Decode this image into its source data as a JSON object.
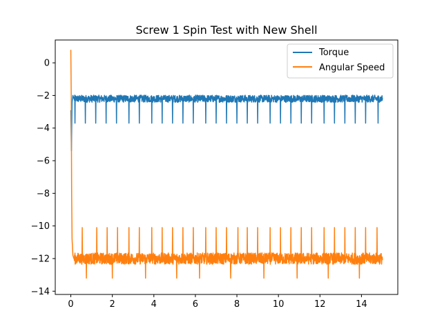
{
  "chart_data": {
    "type": "line",
    "title": "Screw 1 Spin Test with New Shell",
    "xlabel": "",
    "ylabel": "",
    "xlim": [
      -0.75,
      15.75
    ],
    "ylim": [
      -14.2,
      1.4
    ],
    "x_ticks": [
      0,
      2,
      4,
      6,
      8,
      10,
      12,
      14
    ],
    "x_tick_labels": [
      "0",
      "2",
      "4",
      "6",
      "8",
      "10",
      "12",
      "14"
    ],
    "y_ticks": [
      0,
      -2,
      -4,
      -6,
      -8,
      -10,
      -12,
      -14
    ],
    "y_tick_labels": [
      "0",
      "−2",
      "−4",
      "−6",
      "−8",
      "−10",
      "−12",
      "−14"
    ],
    "grid": false,
    "legend_position": "top-right",
    "series": [
      {
        "name": "Torque",
        "color": "#1f77b4",
        "start_values": [
          [
            0.0,
            -2.9
          ],
          [
            0.03,
            -5.4
          ],
          [
            0.06,
            -2.4
          ],
          [
            0.1,
            -2.0
          ],
          [
            0.15,
            -2.2
          ]
        ],
        "baseline": -2.2,
        "noise": 0.22,
        "dip_x": [
          0.2,
          0.7,
          1.2,
          1.7,
          2.2,
          2.8,
          3.3,
          3.9,
          4.4,
          4.9,
          5.4,
          5.9,
          6.5,
          7.0,
          7.5,
          8.0,
          8.5,
          9.0,
          9.6,
          10.1,
          10.6,
          11.1,
          11.6,
          12.2,
          12.7,
          13.2,
          13.7,
          14.2,
          14.8
        ],
        "dip_y": -3.7,
        "end_x": 15.0
      },
      {
        "name": "Angular Speed",
        "color": "#ff7f0e",
        "start_values": [
          [
            0.0,
            0.8
          ],
          [
            0.02,
            -2.0
          ],
          [
            0.04,
            -8.0
          ],
          [
            0.06,
            -10.8
          ],
          [
            0.1,
            -11.8
          ],
          [
            0.15,
            -12.0
          ]
        ],
        "baseline": -12.0,
        "noise": 0.35,
        "spike_x": [
          0.55,
          1.25,
          1.75,
          2.25,
          2.8,
          3.3,
          3.9,
          4.4,
          4.9,
          5.4,
          5.9,
          6.5,
          7.0,
          7.5,
          8.05,
          8.5,
          9.0,
          9.6,
          10.1,
          10.6,
          11.1,
          11.6,
          12.2,
          12.7,
          13.2,
          13.7,
          14.2,
          14.75
        ],
        "spike_y": -10.1,
        "dip_x": [
          0.75,
          2.0,
          3.6,
          5.1,
          6.2,
          7.7,
          9.3,
          10.9,
          12.4,
          13.9
        ],
        "dip_y": -13.2,
        "end_x": 15.0
      }
    ]
  }
}
